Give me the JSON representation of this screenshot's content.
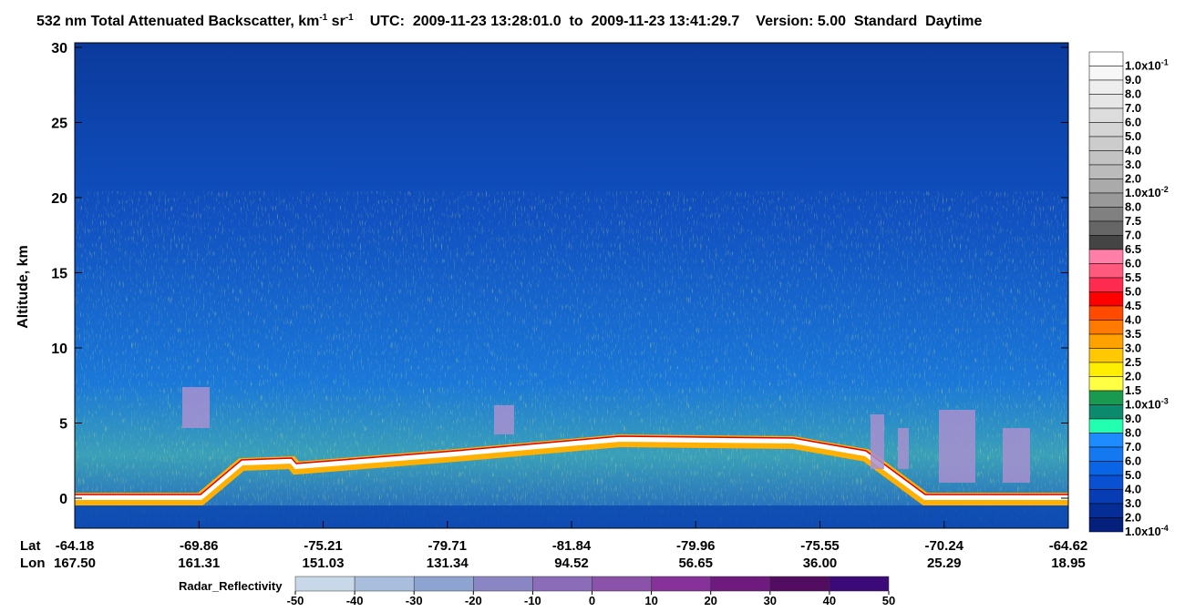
{
  "chart_data": {
    "type": "curtain",
    "title": {
      "main": "532 nm Total Attenuated Backscatter, km",
      "sup1": "-1",
      "mid": " sr",
      "sup2": "-1",
      "utc": "UTC:  2009-11-23 13:28:01.0  to  2009-11-23 13:41:29.7",
      "version": "Version: 5.00  Standard  Daytime"
    },
    "y_label": "Altitude, km",
    "ylim": [
      -2,
      30.3
    ],
    "yticks": [
      0,
      5,
      10,
      15,
      20,
      25,
      30
    ],
    "lat_label": "Lat",
    "lon_label": "Lon",
    "lat": [
      "-64.18",
      "-69.86",
      "-75.21",
      "-79.71",
      "-81.84",
      "-79.96",
      "-75.55",
      "-70.24",
      "-64.62"
    ],
    "lon": [
      "167.50",
      "161.31",
      "151.03",
      "131.34",
      "94.52",
      "56.65",
      "36.00",
      "25.29",
      "18.95"
    ],
    "colorbar": [
      {
        "label": "1.0x10",
        "exp": "-1",
        "color": "#ffffff"
      },
      {
        "label": "9.0",
        "color": "#f7f7f7"
      },
      {
        "label": "8.0",
        "color": "#eeeeee"
      },
      {
        "label": "7.0",
        "color": "#e6e6e6"
      },
      {
        "label": "6.0",
        "color": "#dddddd"
      },
      {
        "label": "5.0",
        "color": "#d5d5d5"
      },
      {
        "label": "4.0",
        "color": "#cccccc"
      },
      {
        "label": "3.0",
        "color": "#c3c3c3"
      },
      {
        "label": "2.0",
        "color": "#bbbbbb"
      },
      {
        "label": "1.0x10",
        "exp": "-2",
        "color": "#aaaaaa"
      },
      {
        "label": "8.0",
        "color": "#999999"
      },
      {
        "label": "7.5",
        "color": "#808080"
      },
      {
        "label": "7.0",
        "color": "#666666"
      },
      {
        "label": "6.5",
        "color": "#444444"
      },
      {
        "label": "6.0",
        "color": "#ff7fa8"
      },
      {
        "label": "5.5",
        "color": "#ff5a7d"
      },
      {
        "label": "5.0",
        "color": "#ff2a50"
      },
      {
        "label": "4.5",
        "color": "#ff0000"
      },
      {
        "label": "4.0",
        "color": "#ff4a00"
      },
      {
        "label": "3.5",
        "color": "#ff7a00"
      },
      {
        "label": "3.0",
        "color": "#ffa200"
      },
      {
        "label": "2.5",
        "color": "#ffc800"
      },
      {
        "label": "2.0",
        "color": "#ffee00"
      },
      {
        "label": "1.5",
        "color": "#ffff44"
      },
      {
        "label": "1.0x10",
        "exp": "-3",
        "color": "#1a9a50"
      },
      {
        "label": "9.0",
        "color": "#0c8a6e"
      },
      {
        "label": "8.0",
        "color": "#22ffb0"
      },
      {
        "label": "7.0",
        "color": "#1e8cff"
      },
      {
        "label": "6.0",
        "color": "#1478f0"
      },
      {
        "label": "5.0",
        "color": "#0a64e6"
      },
      {
        "label": "4.0",
        "color": "#0a50d2"
      },
      {
        "label": "3.0",
        "color": "#083cb4"
      },
      {
        "label": "2.0",
        "color": "#062d96"
      },
      {
        "label": "1.0x10",
        "exp": "-4",
        "color": "#051f7d"
      }
    ],
    "radar_label": "Radar_Reflectivity",
    "radar_ticks": [
      -50,
      -40,
      -30,
      -20,
      -10,
      0,
      10,
      20,
      30,
      40,
      50
    ],
    "radar_colors": [
      "#c8d8e8",
      "#a8bedc",
      "#8ea4d0",
      "#8a86c4",
      "#8a6cb8",
      "#8a52a8",
      "#86329a",
      "#6e1a7e",
      "#520c60",
      "#3c0a78",
      "#2a0a90"
    ]
  }
}
